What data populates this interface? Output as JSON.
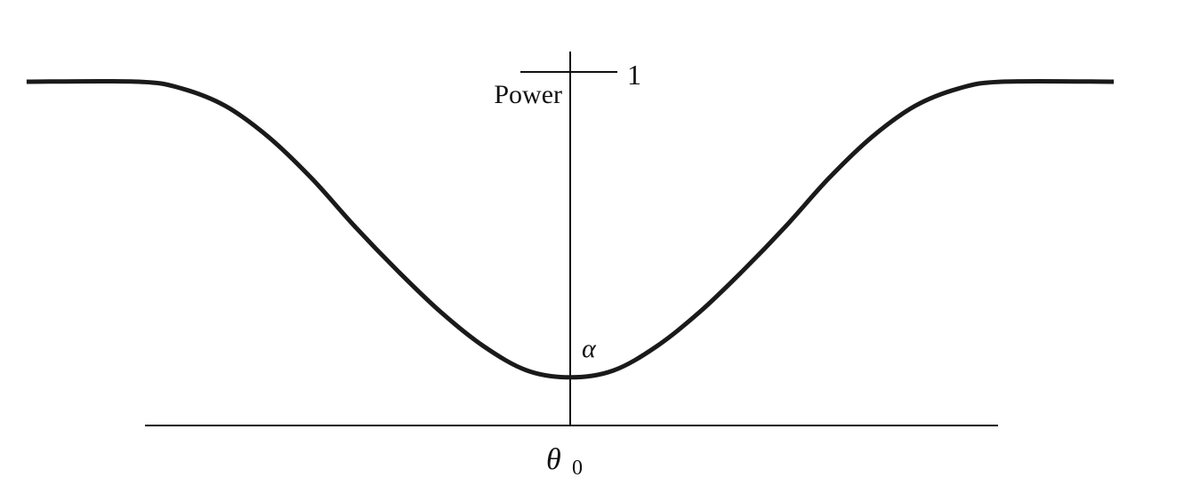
{
  "chart_data": {
    "type": "line",
    "title": "",
    "xlabel": "",
    "ylabel": "Power",
    "x_tick_label": "θ",
    "x_tick_label_subscript": "0",
    "y_tick_label": "1",
    "min_annotation": "α",
    "x_center": 0,
    "xlim": [
      -5,
      5
    ],
    "ylim": [
      0,
      1
    ],
    "alpha_value": 0.14,
    "grid": false,
    "legend": "none",
    "series": [
      {
        "x": [
          -6.3,
          -5,
          -4.5,
          -4,
          -3.5,
          -3,
          -2.5,
          -2,
          -1.5,
          -1,
          -0.5,
          0,
          0.5,
          1,
          1.5,
          2,
          2.5,
          3,
          3.5,
          4,
          4.5,
          5,
          6.3
        ],
        "values": [
          1.0,
          1.0,
          0.98,
          0.93,
          0.84,
          0.72,
          0.58,
          0.45,
          0.33,
          0.23,
          0.16,
          0.14,
          0.16,
          0.23,
          0.33,
          0.45,
          0.58,
          0.72,
          0.84,
          0.93,
          0.98,
          1.0,
          1.0
        ]
      }
    ],
    "colors": {
      "curve": "#1a1a1a",
      "axes": "#111111"
    }
  }
}
